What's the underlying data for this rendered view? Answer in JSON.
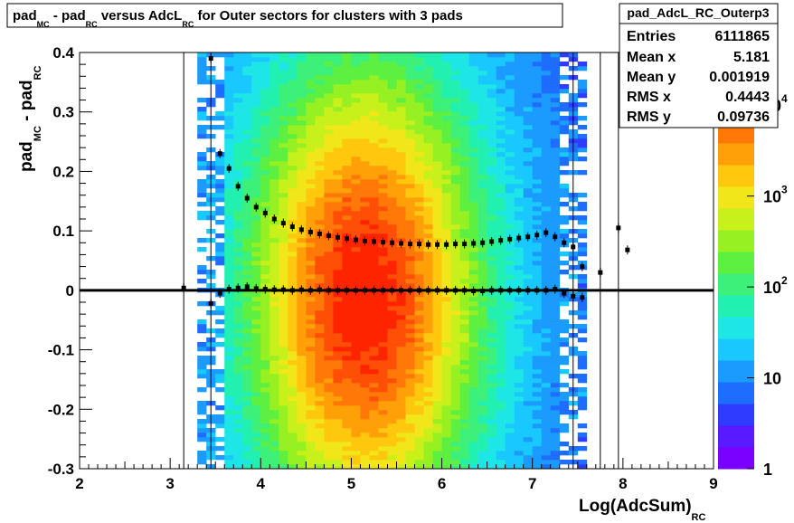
{
  "chart_data": {
    "type": "heatmap",
    "title_parts": {
      "a": "pad",
      "a_sub": "MC",
      "b": " - pad",
      "b_sub": "RC",
      "c": " versus AdcL",
      "c_sub": "RC",
      "d": " for Outer sectors for clusters with 3 pads"
    },
    "xlabel": "Log(AdcSum)",
    "xlabel_sub": "RC",
    "ylabel_parts": {
      "a": "pad",
      "a_sub": "MC",
      "b": " - pad",
      "b_sub": "RC"
    },
    "xlim": [
      2,
      9
    ],
    "ylim": [
      -0.3,
      0.4
    ],
    "x_ticks": [
      "2",
      "3",
      "4",
      "5",
      "6",
      "7",
      "8",
      "9"
    ],
    "y_ticks": [
      "-0.3",
      "-0.2",
      "-0.1",
      "0",
      "0.1",
      "0.2",
      "0.3",
      "0.4"
    ],
    "colorbar": {
      "scale": "log",
      "range": [
        1,
        20000
      ],
      "labels": [
        {
          "base": "1",
          "exp": "",
          "value": 1
        },
        {
          "base": "10",
          "exp": "",
          "value": 10
        },
        {
          "base": "10",
          "exp": "2",
          "value": 100
        },
        {
          "base": "10",
          "exp": "3",
          "value": 1000
        },
        {
          "base": "10",
          "exp": "4",
          "value": 10000
        }
      ]
    },
    "stats": {
      "name": "pad_AdcL_RC_Outerp3",
      "rows": [
        {
          "label": "Entries",
          "value": "6111865"
        },
        {
          "label": "Mean x",
          "value": "5.181"
        },
        {
          "label": "Mean y",
          "value": "0.001919"
        },
        {
          "label": "RMS x",
          "value": "0.4443"
        },
        {
          "label": "RMS y",
          "value": "0.09736"
        }
      ]
    },
    "reference_line_y": 0,
    "profile_upper": {
      "x": [
        3.45,
        3.55,
        3.65,
        3.75,
        3.85,
        3.95,
        4.05,
        4.15,
        4.25,
        4.35,
        4.45,
        4.55,
        4.65,
        4.75,
        4.85,
        4.95,
        5.05,
        5.15,
        5.25,
        5.35,
        5.45,
        5.55,
        5.65,
        5.75,
        5.85,
        5.95,
        6.05,
        6.15,
        6.25,
        6.35,
        6.45,
        6.55,
        6.65,
        6.75,
        6.85,
        6.95,
        7.05,
        7.15,
        7.25,
        7.35,
        7.45,
        7.55,
        7.75,
        7.95,
        8.05
      ],
      "y": [
        0.39,
        0.23,
        0.205,
        0.175,
        0.155,
        0.14,
        0.13,
        0.12,
        0.113,
        0.107,
        0.102,
        0.098,
        0.095,
        0.092,
        0.089,
        0.087,
        0.085,
        0.083,
        0.082,
        0.081,
        0.08,
        0.079,
        0.078,
        0.078,
        0.077,
        0.077,
        0.077,
        0.078,
        0.078,
        0.079,
        0.08,
        0.082,
        0.084,
        0.086,
        0.088,
        0.09,
        0.093,
        0.097,
        0.09,
        0.08,
        0.073,
        0.04,
        0.03,
        0.105,
        0.068
      ]
    },
    "profile_mean": {
      "x": [
        3.15,
        3.45,
        3.55,
        3.65,
        3.75,
        3.85,
        3.95,
        4.05,
        4.15,
        4.25,
        4.35,
        4.45,
        4.55,
        4.65,
        4.75,
        4.85,
        4.95,
        5.05,
        5.15,
        5.25,
        5.35,
        5.45,
        5.55,
        5.65,
        5.75,
        5.85,
        5.95,
        6.05,
        6.15,
        6.25,
        6.35,
        6.45,
        6.55,
        6.65,
        6.75,
        6.85,
        6.95,
        7.05,
        7.15,
        7.25,
        7.35,
        7.45,
        7.55
      ],
      "y": [
        0.004,
        -0.022,
        -0.005,
        0.002,
        0.004,
        0.006,
        0.003,
        0.002,
        0.001,
        0.001,
        0.0,
        0.001,
        0.0,
        0.001,
        0.0,
        0.0,
        0.0,
        0.0,
        0.0,
        0.0,
        0.0,
        0.0,
        0.0,
        0.0,
        0.0,
        0.0,
        0.0,
        0.0,
        0.0,
        0.0,
        -0.001,
        -0.001,
        0.0,
        0.0,
        0.0,
        0.0,
        0.0,
        0.0,
        0.0,
        0.002,
        -0.005,
        -0.01,
        -0.012
      ]
    },
    "vertical_error_lines_x": [
      3.15,
      3.45,
      7.45,
      7.75,
      7.95
    ]
  }
}
